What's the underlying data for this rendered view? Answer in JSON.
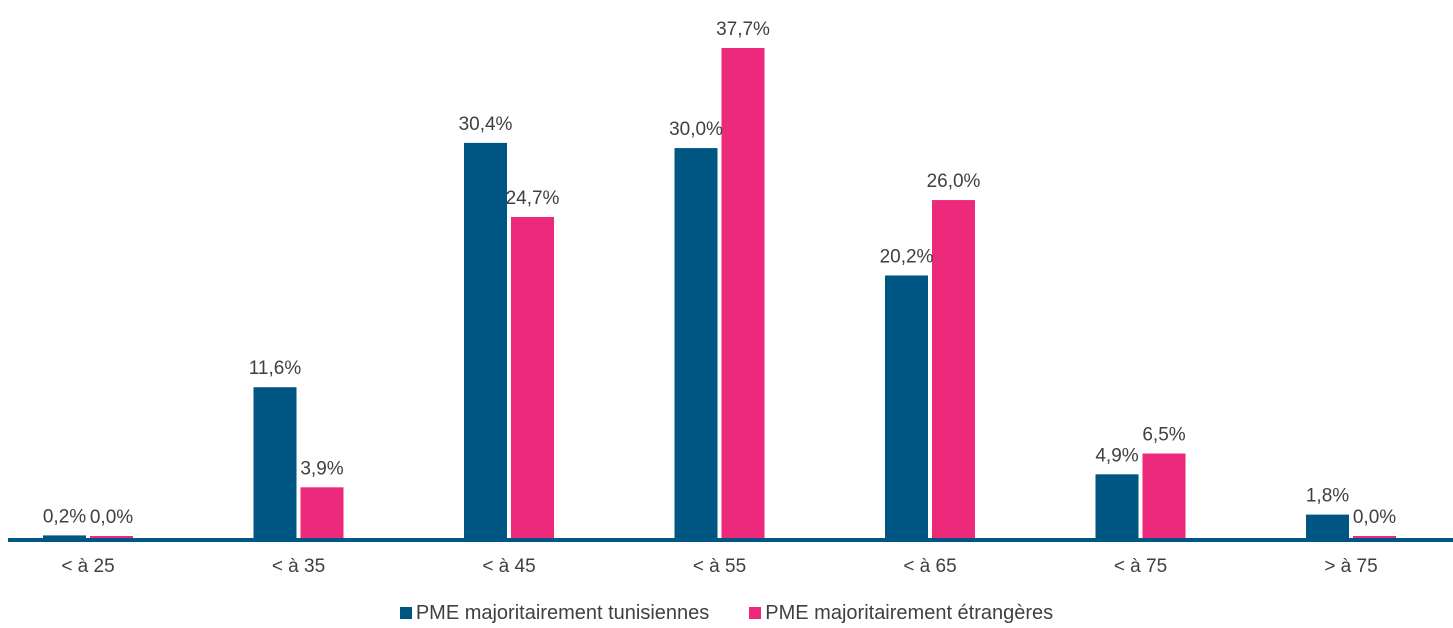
{
  "chart_data": {
    "type": "bar",
    "categories": [
      "< à 25",
      "< à 35",
      "< à 45",
      "< à 55",
      "< à 65",
      "< à 75",
      "> à 75"
    ],
    "series": [
      {
        "name": "PME majoritairement tunisiennes",
        "color": "#005682",
        "values": [
          0.2,
          11.6,
          30.4,
          30.0,
          20.2,
          4.9,
          1.8
        ],
        "labels": [
          "0,2%",
          "11,6%",
          "30,4%",
          "30,0%",
          "20,2%",
          "4,9%",
          "1,8%"
        ]
      },
      {
        "name": "PME majoritairement étrangères",
        "color": "#ED297C",
        "values": [
          0.0,
          3.9,
          24.7,
          37.7,
          26.0,
          6.5,
          0.0
        ],
        "labels": [
          "0,0%",
          "3,9%",
          "24,7%",
          "37,7%",
          "26,0%",
          "6,5%",
          "0,0%"
        ]
      }
    ],
    "title": "",
    "xlabel": "",
    "ylabel": "",
    "ylim": [
      0,
      37.7
    ],
    "grid": false,
    "legend_position": "bottom",
    "axis_color": "#005682"
  }
}
